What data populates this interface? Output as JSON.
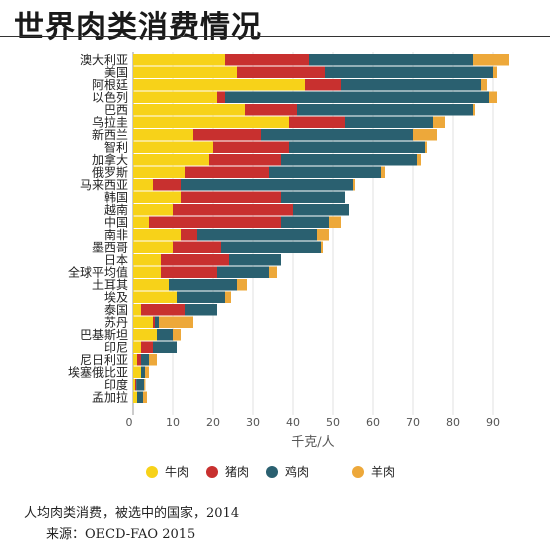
{
  "title": "世界肉类消费情况",
  "caption": "人均肉类消费，被选中的国家，2014",
  "source": "来源：OECD-FAO 2015",
  "colors": {
    "beef": "#f7d219",
    "pork": "#c8302f",
    "chicken": "#2a6070",
    "lamb": "#eda83a"
  },
  "chart_data": {
    "type": "bar",
    "orientation": "horizontal",
    "stacked": true,
    "xlabel": "千克/人",
    "xlim": [
      0,
      92
    ],
    "xticks": [
      0,
      10,
      20,
      30,
      40,
      50,
      60,
      70,
      80,
      90
    ],
    "legend_position": "bottom",
    "categories": [
      "澳大利亚",
      "美国",
      "阿根廷",
      "以色列",
      "巴西",
      "乌拉圭",
      "新西兰",
      "智利",
      "加拿大",
      "俄罗斯",
      "马来西亚",
      "韩国",
      "越南",
      "中国",
      "南非",
      "墨西哥",
      "日本",
      "全球平均值",
      "土耳其",
      "埃及",
      "泰国",
      "苏丹",
      "巴基斯坦",
      "印尼",
      "尼日利亚",
      "埃塞俄比亚",
      "印度",
      "孟加拉"
    ],
    "series": [
      {
        "name": "牛肉",
        "values": [
          23,
          26,
          43,
          21,
          28,
          39,
          15,
          20,
          19,
          13,
          5,
          12,
          10,
          4,
          12,
          10,
          7,
          7,
          9,
          11,
          2,
          5,
          6,
          2,
          1,
          2,
          0.5,
          1
        ]
      },
      {
        "name": "猪肉",
        "values": [
          21,
          22,
          9,
          2,
          13,
          14,
          17,
          19,
          18,
          21,
          7,
          25,
          30,
          33,
          4,
          12,
          17,
          14,
          0,
          0,
          11,
          0.5,
          0,
          3,
          1,
          0,
          0.3,
          0
        ]
      },
      {
        "name": "鸡肉",
        "values": [
          41,
          42,
          35,
          66,
          44,
          22,
          38,
          34,
          34,
          28,
          43,
          16,
          14,
          12,
          30,
          25,
          13,
          13,
          17,
          12,
          8,
          1,
          4,
          6,
          2,
          1,
          2,
          1.5
        ]
      },
      {
        "name": "羊肉",
        "values": [
          9,
          1,
          1.5,
          2,
          0.5,
          3,
          6,
          0.5,
          1,
          1,
          0.5,
          0,
          0,
          3,
          3,
          0.5,
          0,
          2,
          2.5,
          1.5,
          0,
          8.5,
          2,
          0,
          2,
          1,
          0.3,
          1
        ]
      }
    ]
  }
}
